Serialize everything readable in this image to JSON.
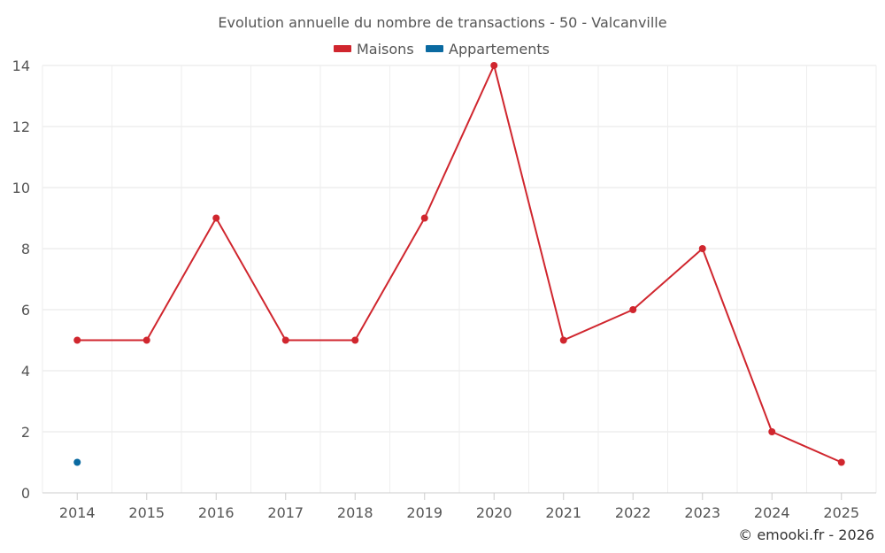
{
  "chart_data": {
    "type": "line",
    "title": "Evolution annuelle du nombre de transactions - 50 - Valcanville",
    "xlabel": "",
    "ylabel": "",
    "categories": [
      "2014",
      "2015",
      "2016",
      "2017",
      "2018",
      "2019",
      "2020",
      "2021",
      "2022",
      "2023",
      "2024",
      "2025"
    ],
    "ylim": [
      0,
      14
    ],
    "yticks": [
      0,
      2,
      4,
      6,
      8,
      10,
      12,
      14
    ],
    "grid": true,
    "legend_position": "top-center",
    "series": [
      {
        "name": "Maisons",
        "color": "#d0262e",
        "values": [
          5,
          5,
          9,
          5,
          5,
          9,
          14,
          5,
          6,
          8,
          2,
          1
        ]
      },
      {
        "name": "Appartements",
        "color": "#0a6aa1",
        "values": [
          1,
          null,
          null,
          null,
          null,
          null,
          null,
          null,
          null,
          null,
          null,
          null
        ]
      }
    ]
  },
  "credit": "© emooki.fr - 2026"
}
